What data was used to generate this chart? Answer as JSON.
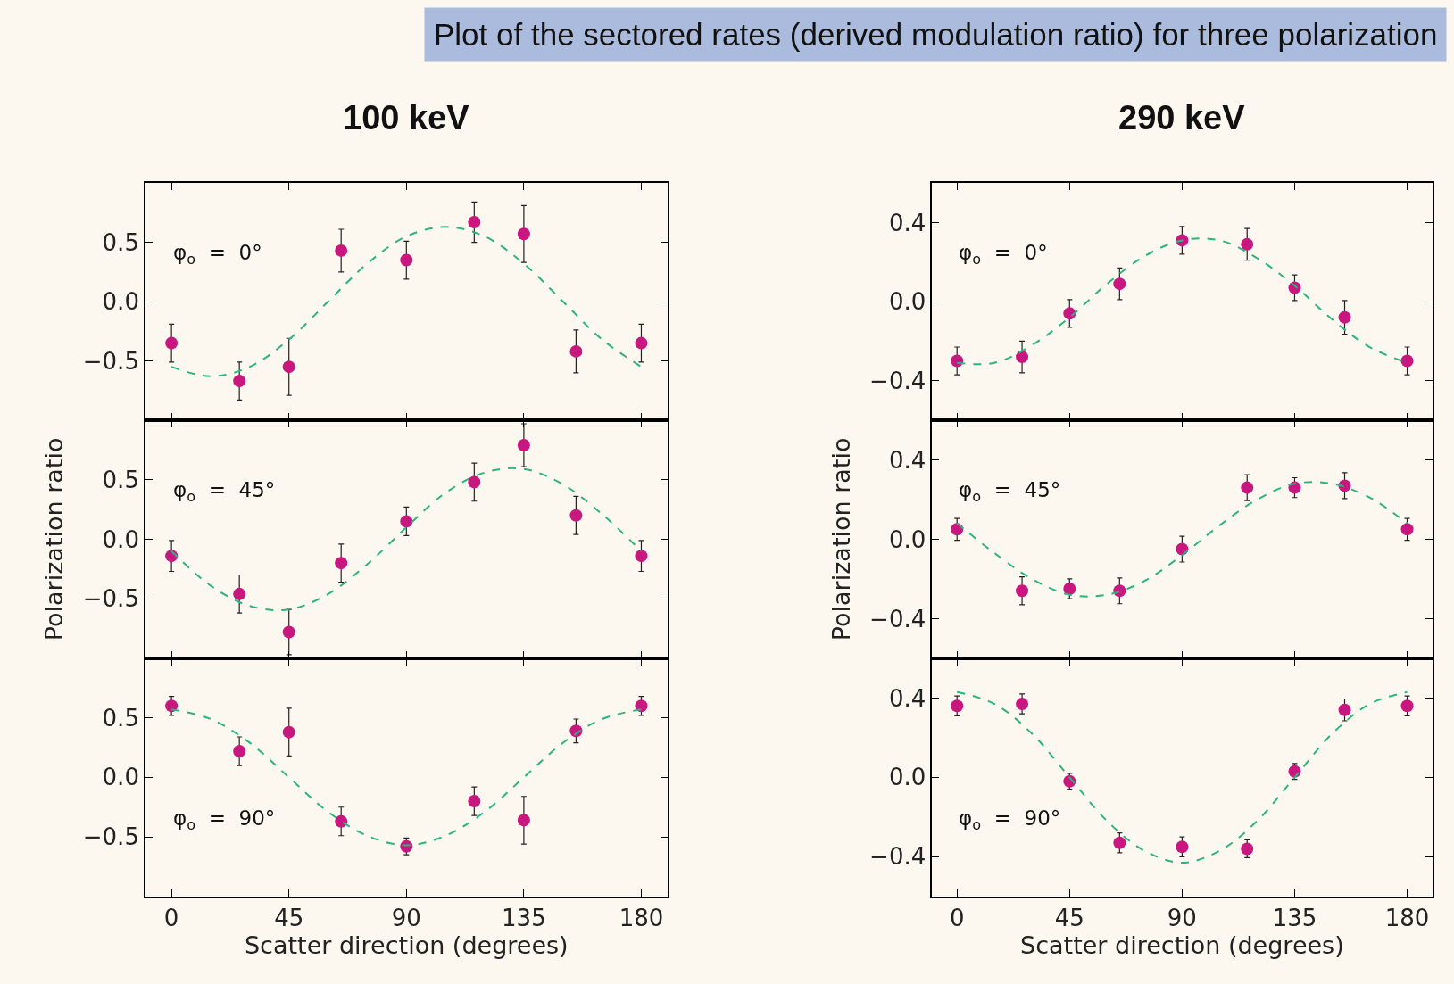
{
  "chart_data": [
    {
      "type": "scatter",
      "title": "Plot of the sectored rates (derived modulation ratio) for three polarization",
      "subtitle": "100 keV",
      "annotations": [
        "φ$_{o}$  =  0°"
      ],
      "xlim": [
        -10,
        190
      ],
      "xticks": [
        0,
        45,
        90,
        135,
        180
      ],
      "ylim": [
        -1,
        1
      ],
      "yticks": [
        {
          "value": -0.5,
          "label": "−0.5"
        },
        {
          "value": 0,
          "label": "0.0"
        },
        {
          "value": 0.5,
          "label": "0.5"
        }
      ],
      "tick_labels": "y",
      "x": [
        0,
        26,
        45,
        65,
        90,
        116,
        135,
        155,
        180
      ],
      "series": [
        {
          "color": "#c8187f",
          "marker": "circle",
          "values": [
            -0.35,
            -0.67,
            -0.55,
            0.43,
            0.35,
            0.67,
            0.57,
            -0.42,
            -0.35
          ],
          "errors": [
            0.16,
            0.16,
            0.24,
            0.18,
            0.16,
            0.17,
            0.24,
            0.18,
            0.16
          ]
        },
        {
          "type": "line",
          "color": "#2db47c",
          "line_style": "dashed",
          "x": [
            0,
            15,
            30,
            45,
            60,
            75,
            90,
            105,
            120,
            135,
            150,
            165,
            180
          ],
          "values": [
            -0.55,
            -0.63,
            -0.55,
            -0.32,
            0,
            0.32,
            0.55,
            0.63,
            0.55,
            0.32,
            0,
            -0.32,
            -0.55
          ]
        }
      ]
    },
    {
      "type": "scatter",
      "subtitle": "290 keV",
      "annotations": [
        "φ$_{o}$  =  0°"
      ],
      "xlim": [
        -10,
        190
      ],
      "xticks": [
        0,
        45,
        90,
        135,
        180
      ],
      "ylim": [
        -0.6,
        0.6
      ],
      "yticks": [
        {
          "value": -0.4,
          "label": "−0.4"
        },
        {
          "value": 0,
          "label": "0.0"
        },
        {
          "value": 0.4,
          "label": "0.4"
        }
      ],
      "tick_labels": "y",
      "x": [
        0,
        26,
        45,
        65,
        90,
        116,
        135,
        155,
        180
      ],
      "series": [
        {
          "color": "#c8187f",
          "marker": "circle",
          "values": [
            -0.3,
            -0.28,
            -0.06,
            0.09,
            0.31,
            0.29,
            0.07,
            -0.08,
            -0.3
          ],
          "errors": [
            0.07,
            0.08,
            0.07,
            0.08,
            0.07,
            0.08,
            0.065,
            0.085,
            0.07
          ]
        },
        {
          "type": "line",
          "color": "#2db47c",
          "line_style": "dashed",
          "x": [
            0,
            15,
            30,
            45,
            60,
            75,
            90,
            105,
            120,
            135,
            150,
            165,
            180
          ],
          "values": [
            -0.31,
            -0.31,
            -0.22,
            -0.08,
            0.09,
            0.23,
            0.31,
            0.31,
            0.22,
            0.08,
            -0.09,
            -0.23,
            -0.31
          ]
        }
      ]
    },
    {
      "type": "scatter",
      "ylabel": "Polarization ratio",
      "annotations": [
        "φ$_{o}$  =  45°"
      ],
      "xlim": [
        -10,
        190
      ],
      "xticks": [
        0,
        45,
        90,
        135,
        180
      ],
      "ylim": [
        -1,
        1
      ],
      "yticks": [
        {
          "value": -0.5,
          "label": "−0.5"
        },
        {
          "value": 0,
          "label": "0.0"
        },
        {
          "value": 0.5,
          "label": "0.5"
        }
      ],
      "tick_labels": "y",
      "x": [
        0,
        26,
        45,
        65,
        90,
        116,
        135,
        155,
        180
      ],
      "series": [
        {
          "color": "#c8187f",
          "marker": "circle",
          "values": [
            -0.14,
            -0.46,
            -0.78,
            -0.2,
            0.15,
            0.48,
            0.79,
            0.2,
            -0.14
          ],
          "errors": [
            0.13,
            0.16,
            0.19,
            0.16,
            0.12,
            0.16,
            0.18,
            0.16,
            0.13
          ]
        },
        {
          "type": "line",
          "color": "#2db47c",
          "line_style": "dashed",
          "x": [
            0,
            15,
            30,
            45,
            60,
            75,
            90,
            105,
            120,
            135,
            150,
            165,
            180
          ],
          "values": [
            -0.1,
            -0.39,
            -0.56,
            -0.59,
            -0.46,
            -0.21,
            0.1,
            0.39,
            0.56,
            0.59,
            0.46,
            0.21,
            -0.1
          ]
        }
      ]
    },
    {
      "type": "scatter",
      "ylabel": "Polarization ratio",
      "annotations": [
        "φ$_{o}$  =  45°"
      ],
      "xlim": [
        -10,
        190
      ],
      "xticks": [
        0,
        45,
        90,
        135,
        180
      ],
      "ylim": [
        -0.6,
        0.6
      ],
      "yticks": [
        {
          "value": -0.4,
          "label": "−0.4"
        },
        {
          "value": 0,
          "label": "0.0"
        },
        {
          "value": 0.4,
          "label": "0.4"
        }
      ],
      "tick_labels": "y",
      "x": [
        0,
        26,
        45,
        65,
        90,
        116,
        135,
        155,
        180
      ],
      "series": [
        {
          "color": "#c8187f",
          "marker": "circle",
          "values": [
            0.05,
            -0.26,
            -0.25,
            -0.26,
            -0.05,
            0.26,
            0.26,
            0.27,
            0.05
          ],
          "errors": [
            0.055,
            0.07,
            0.05,
            0.065,
            0.065,
            0.065,
            0.05,
            0.065,
            0.055
          ]
        },
        {
          "type": "line",
          "color": "#2db47c",
          "line_style": "dashed",
          "x": [
            0,
            15,
            30,
            45,
            60,
            75,
            90,
            105,
            120,
            135,
            150,
            165,
            180
          ],
          "values": [
            0.08,
            -0.07,
            -0.2,
            -0.28,
            -0.28,
            -0.21,
            -0.08,
            0.07,
            0.2,
            0.28,
            0.28,
            0.21,
            0.08
          ]
        }
      ]
    },
    {
      "type": "scatter",
      "xlabel": "Scatter direction (degrees)",
      "annotations": [
        "φ$_{o}$  =  90°"
      ],
      "xlim": [
        -10,
        190
      ],
      "xticks": [
        0,
        45,
        90,
        135,
        180
      ],
      "ylim": [
        -1,
        1
      ],
      "yticks": [
        {
          "value": -0.5,
          "label": "−0.5"
        },
        {
          "value": 0,
          "label": "0.0"
        },
        {
          "value": 0.5,
          "label": "0.5"
        }
      ],
      "x": [
        0,
        26,
        45,
        65,
        90,
        116,
        135,
        155,
        180
      ],
      "series": [
        {
          "color": "#c8187f",
          "marker": "circle",
          "values": [
            0.6,
            0.22,
            0.38,
            -0.37,
            -0.58,
            -0.2,
            -0.36,
            0.39,
            0.6
          ],
          "errors": [
            0.08,
            0.12,
            0.2,
            0.12,
            0.07,
            0.12,
            0.2,
            0.1,
            0.08
          ]
        },
        {
          "type": "line",
          "color": "#2db47c",
          "line_style": "dashed",
          "x": [
            0,
            15,
            30,
            45,
            60,
            75,
            90,
            105,
            120,
            135,
            150,
            165,
            180
          ],
          "values": [
            0.57,
            0.49,
            0.29,
            0,
            -0.29,
            -0.49,
            -0.57,
            -0.49,
            -0.29,
            0,
            0.29,
            0.49,
            0.57
          ]
        }
      ]
    },
    {
      "type": "scatter",
      "xlabel": "Scatter direction (degrees)",
      "annotations": [
        "φ$_{o}$  =  90°"
      ],
      "xlim": [
        -10,
        190
      ],
      "xticks": [
        0,
        45,
        90,
        135,
        180
      ],
      "ylim": [
        -0.6,
        0.6
      ],
      "yticks": [
        {
          "value": -0.4,
          "label": "−0.4"
        },
        {
          "value": 0,
          "label": "0.0"
        },
        {
          "value": 0.4,
          "label": "0.4"
        }
      ],
      "x": [
        0,
        26,
        45,
        65,
        90,
        116,
        135,
        155,
        180
      ],
      "series": [
        {
          "color": "#c8187f",
          "marker": "circle",
          "values": [
            0.36,
            0.37,
            -0.02,
            -0.33,
            -0.35,
            -0.36,
            0.03,
            0.34,
            0.36
          ],
          "errors": [
            0.05,
            0.05,
            0.04,
            0.05,
            0.05,
            0.045,
            0.04,
            0.055,
            0.05
          ]
        },
        {
          "type": "line",
          "color": "#2db47c",
          "line_style": "dashed",
          "x": [
            0,
            15,
            30,
            45,
            60,
            75,
            90,
            105,
            120,
            135,
            150,
            165,
            180
          ],
          "values": [
            0.43,
            0.37,
            0.22,
            0,
            -0.22,
            -0.37,
            -0.43,
            -0.37,
            -0.22,
            0,
            0.22,
            0.37,
            0.43
          ]
        }
      ]
    }
  ]
}
